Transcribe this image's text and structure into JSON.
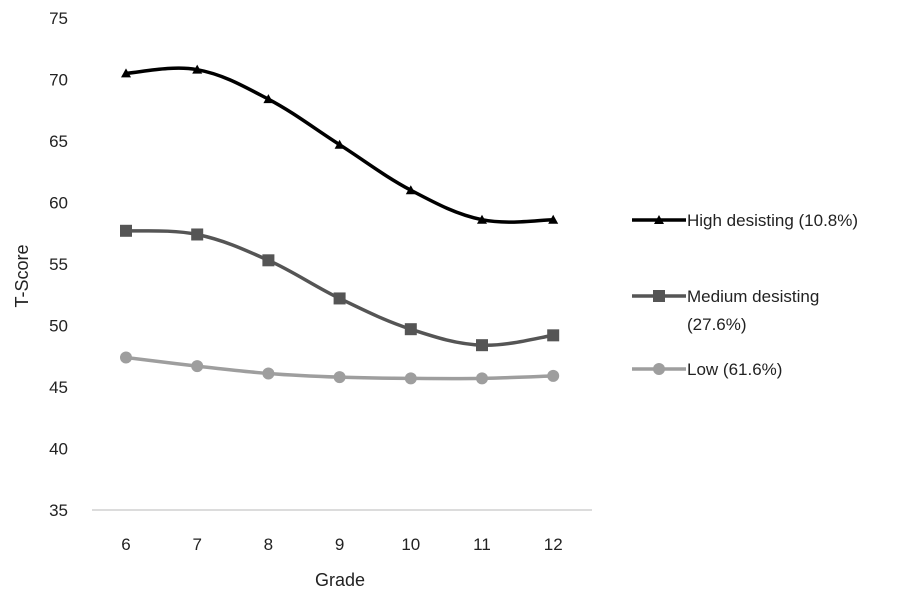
{
  "chart_data": {
    "type": "line",
    "title": "",
    "xlabel": "Grade",
    "ylabel": "T-Score",
    "categories": [
      "6",
      "7",
      "8",
      "9",
      "10",
      "11",
      "12"
    ],
    "ylim": [
      35,
      75
    ],
    "yticks": [
      "35",
      "40",
      "45",
      "50",
      "55",
      "60",
      "65",
      "70",
      "75"
    ],
    "grid": false,
    "legend_position": "right",
    "series": [
      {
        "name": "High desisting (10.8%)",
        "legend_lines": [
          "High desisting (10.8%)"
        ],
        "values": [
          70.5,
          70.8,
          68.4,
          64.7,
          61.0,
          58.6,
          58.6
        ],
        "color": "#000000",
        "marker": "triangle"
      },
      {
        "name": "Medium desisting (27.6%)",
        "legend_lines": [
          "Medium desisting",
          "(27.6%)"
        ],
        "values": [
          57.7,
          57.4,
          55.3,
          52.2,
          49.7,
          48.4,
          49.2
        ],
        "color": "#555555",
        "marker": "square"
      },
      {
        "name": "Low (61.6%)",
        "legend_lines": [
          "Low (61.6%)"
        ],
        "values": [
          47.4,
          46.7,
          46.1,
          45.8,
          45.7,
          45.7,
          45.9
        ],
        "color": "#9e9e9e",
        "marker": "circle"
      }
    ]
  }
}
